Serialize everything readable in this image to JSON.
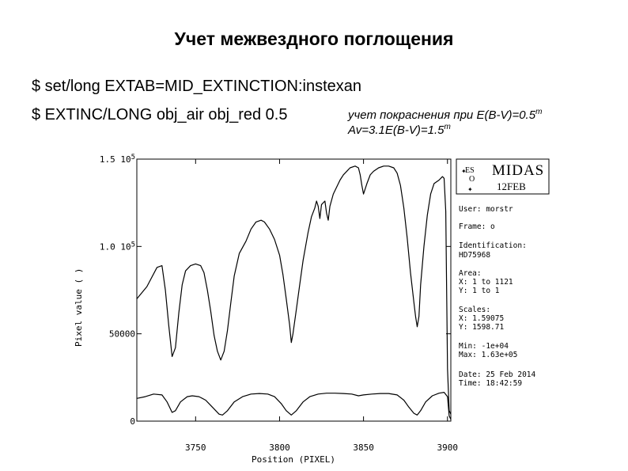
{
  "slide": {
    "title": "Учет межвездного поглощения",
    "cmd1": "$ set/long EXTAB=MID_EXTINCTION:instexan",
    "cmd2": "$ EXTINC/LONG obj_air obj_red 0.5",
    "note1": "учет покраснения при E(B-V)=0.5",
    "note1_sup": "m",
    "note2": "Av=3.1E(B-V)=1.5",
    "note2_sup": "m"
  },
  "logo": {
    "name": "MIDAS",
    "date": "12FEB",
    "eso": "ES",
    "eso2": "O"
  },
  "info": {
    "user": "User: morstr",
    "frame": "Frame: o",
    "ident_label": "Identification:",
    "ident_value": "HD75968",
    "area_label": "Area:",
    "area_x": "X:  1 to 1121",
    "area_y": "Y:  1 to 1",
    "scales_label": "Scales:",
    "scales_x": "X:  1.59075",
    "scales_y": "Y:  1598.71",
    "min": "Min: -1e+04",
    "max": "Max: 1.63e+05",
    "date": "Date:  25 Feb 2014",
    "time": "Time:  18:42:59"
  },
  "chart_data": {
    "type": "line",
    "xlabel": "Position (PIXEL)",
    "ylabel": "Pixel value ( )",
    "xlim": [
      3715,
      3902
    ],
    "ylim": [
      0,
      150000
    ],
    "x_ticks": [
      {
        "value": 3750,
        "label": "3750"
      },
      {
        "value": 3800,
        "label": "3800"
      },
      {
        "value": 3850,
        "label": "3850"
      },
      {
        "value": 3900,
        "label": "3900"
      }
    ],
    "y_ticks": [
      {
        "value": 0,
        "label": "0"
      },
      {
        "value": 50000,
        "label": "50000"
      },
      {
        "value": 100000,
        "label": "1.0 10",
        "sup": "5"
      },
      {
        "value": 150000,
        "label": "1.5 10",
        "sup": "5"
      }
    ],
    "series": [
      {
        "points": [
          [
            3715,
            70000
          ],
          [
            3721,
            77000
          ],
          [
            3727,
            88000
          ],
          [
            3730,
            89000
          ],
          [
            3732,
            75000
          ],
          [
            3734,
            55000
          ],
          [
            3736,
            37000
          ],
          [
            3738,
            42000
          ],
          [
            3740,
            62000
          ],
          [
            3742,
            78000
          ],
          [
            3744,
            86000
          ],
          [
            3747,
            89000
          ],
          [
            3750,
            90000
          ],
          [
            3753,
            89000
          ],
          [
            3755,
            85000
          ],
          [
            3757,
            75000
          ],
          [
            3759,
            63000
          ],
          [
            3761,
            49000
          ],
          [
            3763,
            40000
          ],
          [
            3765,
            35000
          ],
          [
            3767,
            40000
          ],
          [
            3769,
            52000
          ],
          [
            3771,
            68000
          ],
          [
            3773,
            83000
          ],
          [
            3776,
            96000
          ],
          [
            3780,
            103000
          ],
          [
            3783,
            110000
          ],
          [
            3786,
            114000
          ],
          [
            3789,
            115000
          ],
          [
            3791,
            114000
          ],
          [
            3794,
            110000
          ],
          [
            3797,
            104000
          ],
          [
            3800,
            95000
          ],
          [
            3802,
            84000
          ],
          [
            3804,
            70000
          ],
          [
            3806,
            55000
          ],
          [
            3807,
            45000
          ],
          [
            3808,
            50000
          ],
          [
            3810,
            64000
          ],
          [
            3812,
            78000
          ],
          [
            3814,
            92000
          ],
          [
            3817,
            108000
          ],
          [
            3819,
            117000
          ],
          [
            3821,
            122000
          ],
          [
            3822,
            126000
          ],
          [
            3823,
            123000
          ],
          [
            3824,
            116000
          ],
          [
            3825,
            124000
          ],
          [
            3827,
            126000
          ],
          [
            3828,
            119000
          ],
          [
            3829,
            115000
          ],
          [
            3830,
            123000
          ],
          [
            3832,
            130000
          ],
          [
            3836,
            138000
          ],
          [
            3838,
            141000
          ],
          [
            3840,
            143000
          ],
          [
            3842,
            145000
          ],
          [
            3845,
            146000
          ],
          [
            3847,
            145000
          ],
          [
            3848,
            141000
          ],
          [
            3849,
            135000
          ],
          [
            3850,
            130000
          ],
          [
            3852,
            136000
          ],
          [
            3854,
            141000
          ],
          [
            3856,
            143000
          ],
          [
            3859,
            145000
          ],
          [
            3862,
            146000
          ],
          [
            3865,
            146000
          ],
          [
            3868,
            145000
          ],
          [
            3870,
            142000
          ],
          [
            3872,
            135000
          ],
          [
            3874,
            122000
          ],
          [
            3876,
            105000
          ],
          [
            3878,
            85000
          ],
          [
            3880,
            68000
          ],
          [
            3881,
            60000
          ],
          [
            3882,
            54000
          ],
          [
            3883,
            60000
          ],
          [
            3884,
            78000
          ],
          [
            3886,
            100000
          ],
          [
            3888,
            118000
          ],
          [
            3890,
            130000
          ],
          [
            3892,
            136000
          ],
          [
            3895,
            138000
          ],
          [
            3897,
            140000
          ],
          [
            3898,
            139000
          ],
          [
            3899,
            120000
          ],
          [
            3900,
            30000
          ],
          [
            3901,
            6000
          ],
          [
            3902,
            4000
          ]
        ]
      },
      {
        "points": [
          [
            3715,
            13000
          ],
          [
            3720,
            14000
          ],
          [
            3725,
            15500
          ],
          [
            3730,
            15000
          ],
          [
            3733,
            11000
          ],
          [
            3736,
            5000
          ],
          [
            3738,
            6000
          ],
          [
            3741,
            11000
          ],
          [
            3745,
            14000
          ],
          [
            3748,
            14500
          ],
          [
            3752,
            14000
          ],
          [
            3756,
            12000
          ],
          [
            3760,
            8000
          ],
          [
            3764,
            4000
          ],
          [
            3766,
            3500
          ],
          [
            3769,
            6000
          ],
          [
            3773,
            11000
          ],
          [
            3778,
            14000
          ],
          [
            3783,
            15500
          ],
          [
            3788,
            15800
          ],
          [
            3793,
            15500
          ],
          [
            3797,
            14000
          ],
          [
            3801,
            10000
          ],
          [
            3804,
            6000
          ],
          [
            3807,
            3500
          ],
          [
            3810,
            6000
          ],
          [
            3814,
            11000
          ],
          [
            3818,
            14000
          ],
          [
            3823,
            15500
          ],
          [
            3828,
            16000
          ],
          [
            3833,
            16000
          ],
          [
            3838,
            15800
          ],
          [
            3843,
            15500
          ],
          [
            3847,
            14500
          ],
          [
            3850,
            15000
          ],
          [
            3855,
            15500
          ],
          [
            3860,
            15800
          ],
          [
            3865,
            15800
          ],
          [
            3870,
            15000
          ],
          [
            3874,
            12000
          ],
          [
            3877,
            8000
          ],
          [
            3880,
            4500
          ],
          [
            3882,
            3500
          ],
          [
            3884,
            6000
          ],
          [
            3887,
            11000
          ],
          [
            3891,
            14500
          ],
          [
            3895,
            16000
          ],
          [
            3898,
            16500
          ],
          [
            3900,
            14000
          ],
          [
            3901,
            3000
          ],
          [
            3902,
            1000
          ]
        ]
      }
    ]
  }
}
